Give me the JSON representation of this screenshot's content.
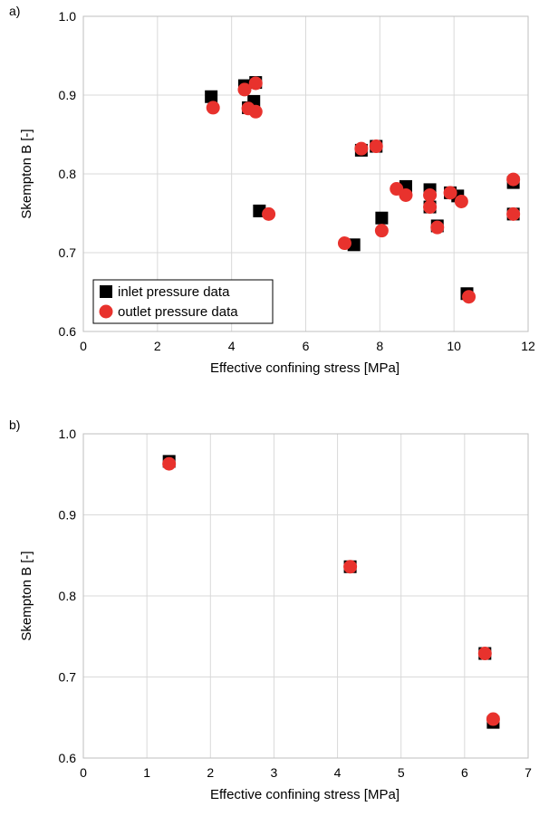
{
  "chart_data": [
    {
      "panel": "a)",
      "type": "scatter",
      "xlabel": "Effective confining stress [MPa]",
      "ylabel": "Skempton B [-]",
      "xlim": [
        0,
        12
      ],
      "ylim": [
        0.6,
        1.0
      ],
      "xticks": [
        0,
        2,
        4,
        6,
        8,
        10,
        12
      ],
      "yticks": [
        "0.6",
        "0.7",
        "0.8",
        "0.9",
        "1.0"
      ],
      "grid": true,
      "legend": {
        "placement": "bottom-left",
        "entries": [
          "inlet pressure data",
          "outlet pressure data"
        ]
      },
      "series": [
        {
          "name": "inlet pressure data",
          "marker": "square",
          "color": "#000000",
          "points": [
            [
              3.45,
              0.898
            ],
            [
              4.35,
              0.912
            ],
            [
              4.65,
              0.916
            ],
            [
              4.45,
              0.884
            ],
            [
              4.6,
              0.892
            ],
            [
              4.75,
              0.753
            ],
            [
              7.3,
              0.71
            ],
            [
              7.5,
              0.83
            ],
            [
              7.9,
              0.835
            ],
            [
              8.05,
              0.744
            ],
            [
              8.7,
              0.784
            ],
            [
              9.35,
              0.78
            ],
            [
              9.35,
              0.758
            ],
            [
              9.55,
              0.734
            ],
            [
              9.9,
              0.776
            ],
            [
              10.1,
              0.772
            ],
            [
              10.35,
              0.648
            ],
            [
              11.6,
              0.789
            ],
            [
              11.6,
              0.749
            ]
          ]
        },
        {
          "name": "outlet pressure data",
          "marker": "circle",
          "color": "#e8322d",
          "points": [
            [
              3.5,
              0.884
            ],
            [
              4.35,
              0.907
            ],
            [
              4.65,
              0.915
            ],
            [
              4.45,
              0.883
            ],
            [
              4.65,
              0.879
            ],
            [
              5.0,
              0.749
            ],
            [
              7.05,
              0.712
            ],
            [
              7.5,
              0.832
            ],
            [
              7.9,
              0.835
            ],
            [
              8.05,
              0.728
            ],
            [
              8.45,
              0.781
            ],
            [
              8.7,
              0.773
            ],
            [
              9.35,
              0.773
            ],
            [
              9.35,
              0.758
            ],
            [
              9.55,
              0.732
            ],
            [
              9.9,
              0.776
            ],
            [
              10.2,
              0.765
            ],
            [
              10.4,
              0.644
            ],
            [
              11.6,
              0.793
            ],
            [
              11.6,
              0.749
            ]
          ]
        }
      ]
    },
    {
      "panel": "b)",
      "type": "scatter",
      "xlabel": "Effective confining stress [MPa]",
      "ylabel": "Skempton B [-]",
      "xlim": [
        0,
        7
      ],
      "ylim": [
        0.6,
        1.0
      ],
      "xticks": [
        0,
        1,
        2,
        3,
        4,
        5,
        6,
        7
      ],
      "yticks": [
        "0.6",
        "0.7",
        "0.8",
        "0.9",
        "1.0"
      ],
      "grid": true,
      "series": [
        {
          "name": "inlet pressure data",
          "marker": "square",
          "color": "#000000",
          "points": [
            [
              1.35,
              0.966
            ],
            [
              4.2,
              0.836
            ],
            [
              6.32,
              0.729
            ],
            [
              6.45,
              0.644
            ]
          ]
        },
        {
          "name": "outlet pressure data",
          "marker": "circle",
          "color": "#e8322d",
          "points": [
            [
              1.35,
              0.963
            ],
            [
              4.2,
              0.836
            ],
            [
              6.32,
              0.729
            ],
            [
              6.45,
              0.648
            ]
          ]
        }
      ]
    }
  ]
}
